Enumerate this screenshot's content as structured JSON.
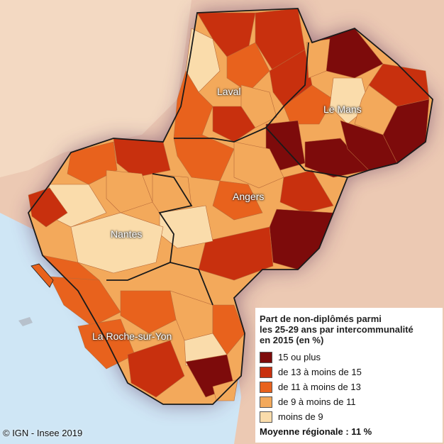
{
  "map": {
    "cities": [
      "Laval",
      "Le Mans",
      "Angers",
      "Nantes",
      "La Roche-sur-Yon"
    ],
    "colors": {
      "sea": "#cfe6f5",
      "land_outside": "#ecc9b3",
      "boundary": "#1a1a1a"
    }
  },
  "legend": {
    "title_lines": [
      "Part de non-diplômés parmi",
      "les 25-29 ans par intercommunalité",
      "en 2015 (en %)"
    ],
    "classes": [
      {
        "label": "15 ou plus",
        "color": "#7d0b0b"
      },
      {
        "label": "de 13 à moins de 15",
        "color": "#c8300e"
      },
      {
        "label": "de 11 à moins de 13",
        "color": "#e8621d"
      },
      {
        "label": "de 9 à moins de 11",
        "color": "#f3a95b"
      },
      {
        "label": "moins de 9",
        "color": "#fadcab"
      }
    ],
    "mean": "Moyenne régionale : 11 %"
  },
  "credit": "© IGN - Insee 2019"
}
